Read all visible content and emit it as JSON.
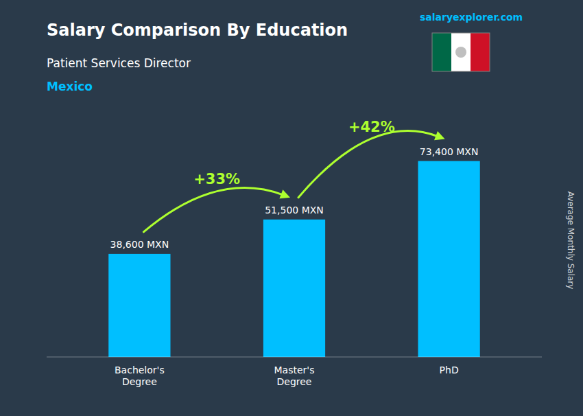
{
  "chart_data": {
    "type": "bar",
    "title": "Salary Comparison By Education",
    "subtitle": "Patient Services Director",
    "country": "Mexico",
    "brand": "salaryexplorer.com",
    "ylabel": "Average Monthly Salary",
    "categories": [
      "Bachelor's\nDegree",
      "Master's\nDegree",
      "PhD"
    ],
    "values": [
      38600,
      51500,
      73400
    ],
    "value_labels": [
      "38,600 MXN",
      "51,500 MXN",
      "73,400 MXN"
    ],
    "data_labels": true,
    "pct_changes": {
      "values": [
        33,
        42
      ],
      "value_labels": [
        "+33%",
        "+42%"
      ]
    },
    "color": "#00BFFF",
    "ylim": [
      0,
      90000
    ],
    "grid": false,
    "tick_labels": "x"
  }
}
